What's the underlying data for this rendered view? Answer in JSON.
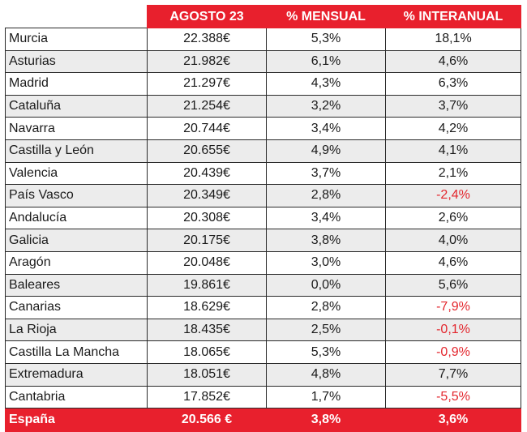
{
  "table": {
    "headers": [
      "",
      "AGOSTO 23",
      "% MENSUAL",
      "% INTERANUAL"
    ],
    "negative_color": "#e3262d",
    "accent_color": "#e8202d",
    "rows": [
      {
        "region": "Murcia",
        "agosto": "22.388€",
        "mensual": "5,3%",
        "interanual": "18,1%"
      },
      {
        "region": "Asturias",
        "agosto": "21.982€",
        "mensual": "6,1%",
        "interanual": "4,6%"
      },
      {
        "region": "Madrid",
        "agosto": "21.297€",
        "mensual": "4,3%",
        "interanual": "6,3%"
      },
      {
        "region": "Cataluña",
        "agosto": "21.254€",
        "mensual": "3,2%",
        "interanual": "3,7%"
      },
      {
        "region": "Navarra",
        "agosto": "20.744€",
        "mensual": "3,4%",
        "interanual": "4,2%"
      },
      {
        "region": "Castilla y León",
        "agosto": "20.655€",
        "mensual": "4,9%",
        "interanual": "4,1%"
      },
      {
        "region": "Valencia",
        "agosto": "20.439€",
        "mensual": "3,7%",
        "interanual": "2,1%"
      },
      {
        "region": "País Vasco",
        "agosto": "20.349€",
        "mensual": "2,8%",
        "interanual": "-2,4%"
      },
      {
        "region": "Andalucía",
        "agosto": "20.308€",
        "mensual": "3,4%",
        "interanual": "2,6%"
      },
      {
        "region": "Galicia",
        "agosto": "20.175€",
        "mensual": "3,8%",
        "interanual": "4,0%"
      },
      {
        "region": "Aragón",
        "agosto": "20.048€",
        "mensual": "3,0%",
        "interanual": "4,6%"
      },
      {
        "region": "Baleares",
        "agosto": "19.861€",
        "mensual": "0,0%",
        "interanual": "5,6%"
      },
      {
        "region": "Canarias",
        "agosto": "18.629€",
        "mensual": "2,8%",
        "interanual": "-7,9%"
      },
      {
        "region": "La Rioja",
        "agosto": "18.435€",
        "mensual": "2,5%",
        "interanual": "-0,1%"
      },
      {
        "region": "Castilla La Mancha",
        "agosto": "18.065€",
        "mensual": "5,3%",
        "interanual": "-0,9%"
      },
      {
        "region": "Extremadura",
        "agosto": "18.051€",
        "mensual": "4,8%",
        "interanual": "7,7%"
      },
      {
        "region": "Cantabria",
        "agosto": "17.852€",
        "mensual": "1,7%",
        "interanual": "-5,5%"
      }
    ],
    "total": {
      "region": "España",
      "agosto": "20.566 €",
      "mensual": "3,8%",
      "interanual": "3,6%"
    }
  }
}
